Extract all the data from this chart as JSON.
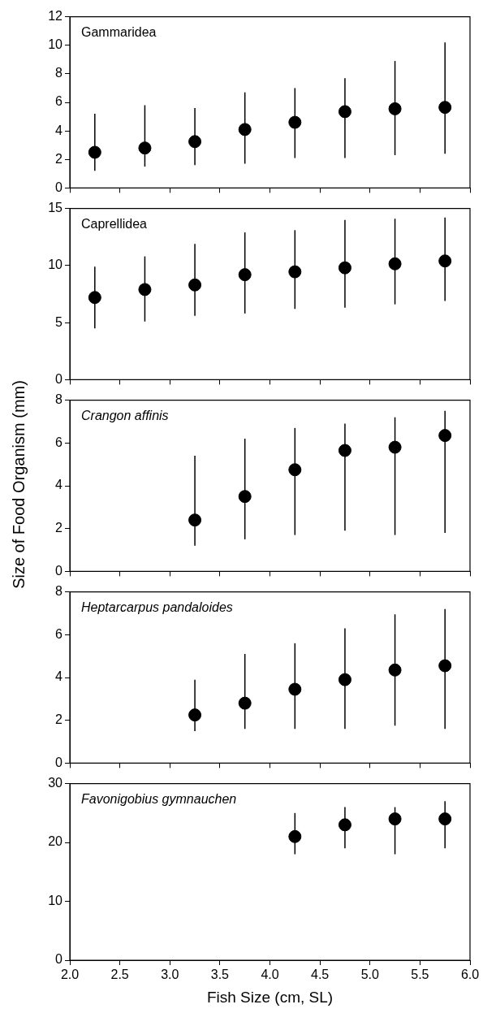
{
  "chart_data": [
    {
      "type": "scatter",
      "title": "Gammaridea",
      "x": [
        2.25,
        2.75,
        3.25,
        3.75,
        4.25,
        4.75,
        5.25,
        5.75
      ],
      "values": [
        2.5,
        2.8,
        3.25,
        4.1,
        4.6,
        5.35,
        5.55,
        5.65
      ],
      "errors": [
        [
          1.2,
          5.2
        ],
        [
          1.5,
          5.8
        ],
        [
          1.6,
          5.6
        ],
        [
          1.7,
          6.7
        ],
        [
          2.1,
          7.0
        ],
        [
          2.1,
          7.7
        ],
        [
          2.3,
          8.9
        ],
        [
          2.4,
          10.2
        ]
      ],
      "color": "#000000",
      "marker": "circle",
      "xlim": [
        2,
        6
      ],
      "xticks": [
        2,
        2.5,
        3,
        3.5,
        4,
        4.5,
        5,
        5.5,
        6
      ],
      "ylim": [
        0,
        12
      ],
      "yticks": [
        0,
        2,
        4,
        6,
        8,
        10,
        12
      ],
      "tick_labels": "y"
    },
    {
      "type": "scatter",
      "title": "Caprellidea",
      "x": [
        2.25,
        2.75,
        3.25,
        3.75,
        4.25,
        4.75,
        5.25,
        5.75
      ],
      "values": [
        7.2,
        7.9,
        8.3,
        9.2,
        9.45,
        9.8,
        10.15,
        10.4
      ],
      "errors": [
        [
          4.5,
          9.9
        ],
        [
          5.1,
          10.8
        ],
        [
          5.6,
          11.9
        ],
        [
          5.8,
          12.9
        ],
        [
          6.2,
          13.1
        ],
        [
          6.3,
          14.0
        ],
        [
          6.6,
          14.1
        ],
        [
          6.9,
          14.2
        ]
      ],
      "color": "#000000",
      "marker": "circle",
      "xlim": [
        2,
        6
      ],
      "xticks": [
        2,
        2.5,
        3,
        3.5,
        4,
        4.5,
        5,
        5.5,
        6
      ],
      "ylim": [
        0,
        15
      ],
      "yticks": [
        0,
        5,
        10,
        15
      ],
      "tick_labels": "y"
    },
    {
      "type": "scatter",
      "title": "Crangon affinis",
      "ylabel": "Size of  Food Organism (mm)",
      "x": [
        3.25,
        3.75,
        4.25,
        4.75,
        5.25,
        5.75
      ],
      "values": [
        2.4,
        3.5,
        4.75,
        5.65,
        5.8,
        6.35
      ],
      "errors": [
        [
          1.2,
          5.4
        ],
        [
          1.5,
          6.2
        ],
        [
          1.7,
          6.7
        ],
        [
          1.9,
          6.9
        ],
        [
          1.7,
          7.2
        ],
        [
          1.8,
          7.5
        ]
      ],
      "color": "#000000",
      "marker": "circle",
      "xlim": [
        2,
        6
      ],
      "xticks": [
        2,
        2.5,
        3,
        3.5,
        4,
        4.5,
        5,
        5.5,
        6
      ],
      "ylim": [
        0,
        8
      ],
      "yticks": [
        0,
        2,
        4,
        6,
        8
      ],
      "tick_labels": "y"
    },
    {
      "type": "scatter",
      "title": "Heptarcarpus pandaloides",
      "x": [
        3.25,
        3.75,
        4.25,
        4.75,
        5.25,
        5.75
      ],
      "values": [
        2.25,
        2.8,
        3.45,
        3.9,
        4.35,
        4.55
      ],
      "errors": [
        [
          1.5,
          3.9
        ],
        [
          1.6,
          5.1
        ],
        [
          1.6,
          5.6
        ],
        [
          1.6,
          6.3
        ],
        [
          1.75,
          6.95
        ],
        [
          1.6,
          7.2
        ]
      ],
      "color": "#000000",
      "marker": "circle",
      "xlim": [
        2,
        6
      ],
      "xticks": [
        2,
        2.5,
        3,
        3.5,
        4,
        4.5,
        5,
        5.5,
        6
      ],
      "ylim": [
        0,
        8
      ],
      "yticks": [
        0,
        2,
        4,
        6,
        8
      ],
      "tick_labels": "y"
    },
    {
      "type": "scatter",
      "title": "Favonigobius gymnauchen",
      "xlabel": "Fish Size (cm, SL)",
      "x": [
        4.25,
        4.75,
        5.25,
        5.75
      ],
      "values": [
        21,
        23,
        24,
        24
      ],
      "errors": [
        [
          18,
          25
        ],
        [
          19,
          26
        ],
        [
          18,
          26
        ],
        [
          19,
          27
        ]
      ],
      "color": "#000000",
      "marker": "circle",
      "xlim": [
        2,
        6
      ],
      "xticks": [
        {
          "value": 2,
          "label": "2.0"
        },
        {
          "value": 2.5,
          "label": "2.5"
        },
        {
          "value": 3,
          "label": "3.0"
        },
        {
          "value": 3.5,
          "label": "3.5"
        },
        {
          "value": 4,
          "label": "4.0"
        },
        {
          "value": 4.5,
          "label": "4.5"
        },
        {
          "value": 5,
          "label": "5.0"
        },
        {
          "value": 5.5,
          "label": "5.5"
        },
        {
          "value": 6,
          "label": "6.0"
        }
      ],
      "ylim": [
        0,
        30
      ],
      "yticks": [
        0,
        10,
        20,
        30
      ]
    }
  ]
}
